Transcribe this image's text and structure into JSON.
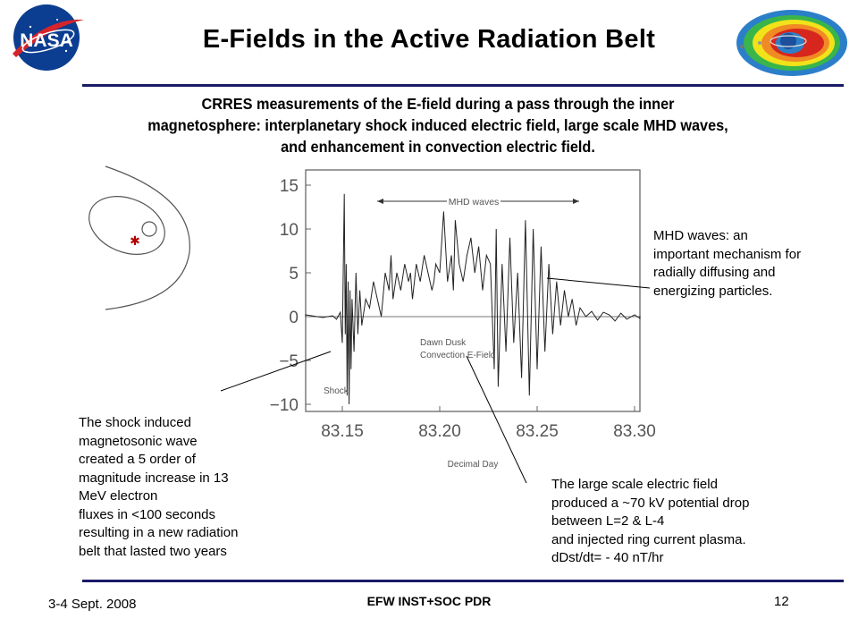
{
  "slide": {
    "title": "E-Fields in the Active Radiation Belt",
    "subtitle_lines": [
      "CRRES measurements of the E-field during a pass through the inner",
      "magnetosphere: interplanetary shock induced electric field, large scale MHD waves,",
      "and enhancement in convection electric field."
    ],
    "logo_text": "NASA",
    "note_mhd": "MHD waves:  an\nimportant mechanism for\nradially diffusing and\nenergizing  particles.",
    "note_shock": "The shock induced\nmagnetosonic wave\ncreated a 5 order of\nmagnitude increase in 13\nMeV electron\nfluxes in <100 seconds\nresulting in a new radiation\nbelt  that lasted two years",
    "note_large": "The large scale electric field\nproduced a ~70 kV potential drop\nbetween L=2 & L-4\nand injected ring current plasma.\ndDst/dt= - 40 nT/hr",
    "footer_date": "3-4 Sept. 2008",
    "footer_center": "EFW INST+SOC PDR",
    "footer_page": "12",
    "colors": {
      "rule": "#1a1a66",
      "orbit_mark": "#b00000",
      "trace": "#222222"
    }
  },
  "chart_data": {
    "type": "line",
    "xlabel": "Decimal Day",
    "ylabel": "",
    "xlim": [
      83.12,
      83.31
    ],
    "ylim": [
      -12,
      16
    ],
    "xticks": [
      83.15,
      83.2,
      83.25,
      83.3
    ],
    "xtick_labels": [
      "83.15",
      "83.20",
      "83.25",
      "83.30"
    ],
    "yticks": [
      15,
      10,
      5,
      0,
      -5,
      -10
    ],
    "ytick_labels": [
      "15",
      "10",
      "5",
      "0",
      "−5",
      "−10"
    ],
    "annotations": {
      "mhd": "MHD waves",
      "convection": "Dawn Dusk\nConvection E-Field",
      "shock": "Shock"
    },
    "series": [
      {
        "x": [
          83.12,
          83.13,
          83.14,
          83.145,
          83.147,
          83.149,
          83.15,
          83.151,
          83.1515,
          83.152,
          83.1525,
          83.153,
          83.1535,
          83.154,
          83.1545,
          83.155,
          83.156,
          83.157,
          83.158,
          83.159,
          83.16,
          83.162,
          83.164,
          83.166,
          83.168,
          83.17,
          83.172,
          83.174,
          83.175,
          83.176,
          83.178,
          83.18,
          83.182,
          83.184,
          83.185,
          83.186,
          83.188,
          83.19,
          83.192,
          83.194,
          83.196,
          83.197,
          83.198,
          83.2,
          83.202,
          83.204,
          83.206,
          83.207,
          83.208,
          83.21,
          83.212,
          83.214,
          83.216,
          83.218,
          83.22,
          83.222,
          83.224,
          83.226,
          83.228,
          83.229,
          83.23,
          83.232,
          83.234,
          83.236,
          83.238,
          83.24,
          83.242,
          83.244,
          83.246,
          83.248,
          83.25,
          83.252,
          83.254,
          83.256,
          83.258,
          83.26,
          83.262,
          83.264,
          83.266,
          83.268,
          83.27,
          83.272,
          83.275,
          83.278,
          83.281,
          83.284,
          83.287,
          83.29,
          83.293,
          83.296,
          83.3,
          83.305,
          83.31
        ],
        "y": [
          0,
          0.2,
          -0.1,
          0.1,
          -0.3,
          0.5,
          -3,
          14,
          -2,
          6,
          -9,
          4,
          -10,
          3,
          -6,
          2,
          -4,
          5,
          -2,
          3,
          -1,
          2,
          1,
          4,
          2,
          0,
          5,
          3,
          7,
          2,
          5,
          3,
          6,
          4,
          5,
          2,
          6,
          4,
          7,
          5,
          3,
          4,
          6,
          5,
          12,
          4,
          7,
          3,
          11,
          6,
          4,
          7,
          9,
          5,
          8,
          3,
          7,
          6,
          -6,
          10,
          -8,
          6,
          -4,
          9,
          -3,
          5,
          -7,
          11,
          -9,
          10,
          -6,
          8,
          -4,
          6,
          -2,
          4,
          -1,
          3,
          0,
          2,
          -1,
          1,
          0,
          0.6,
          -0.4,
          0.5,
          0.2,
          -0.5,
          0.4,
          -0.3,
          0.2,
          -0.2,
          0.1
        ]
      }
    ]
  }
}
